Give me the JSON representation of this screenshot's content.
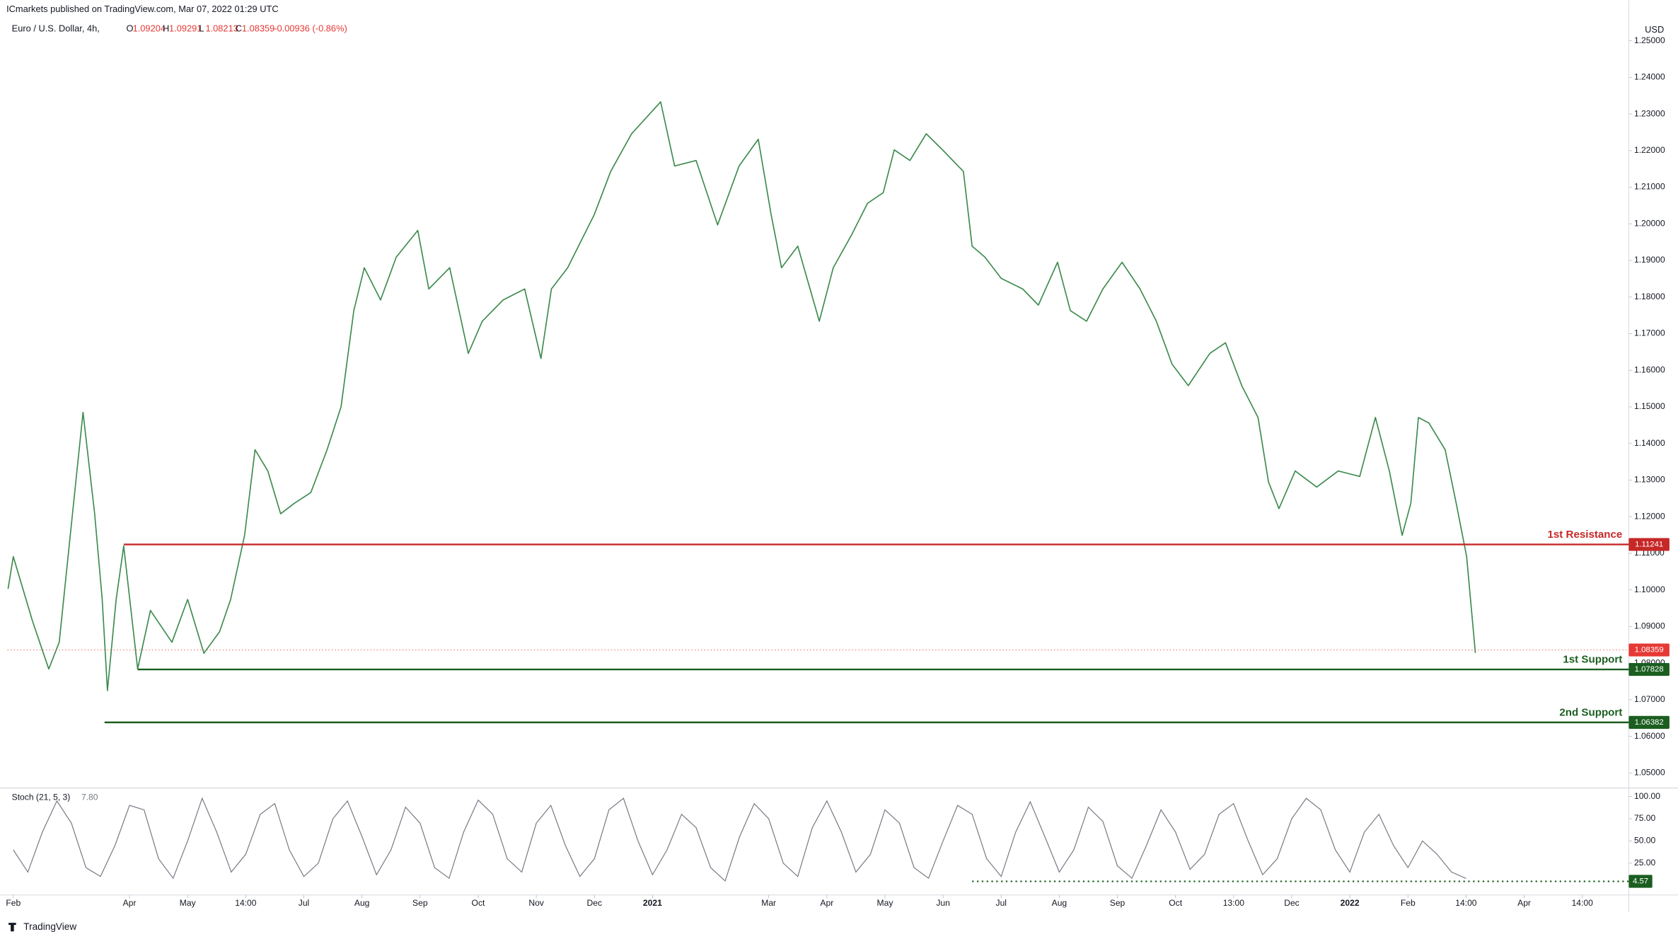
{
  "header": {
    "publisher": "ICmarkets published on TradingView.com, Mar 07, 2022 01:29 UTC",
    "symbol": "Euro / U.S. Dollar, 4h,",
    "ohlc": [
      {
        "key": "O",
        "value": "1.09204"
      },
      {
        "key": "H",
        "value": "1.09291"
      },
      {
        "key": "L",
        "value": "1.08213"
      },
      {
        "key": "C",
        "value": "1.08359"
      }
    ],
    "change": "-0.00936 (-0.86%)",
    "currency": "USD"
  },
  "footer": {
    "brand": "TradingView"
  },
  "chart_data": [
    {
      "type": "line",
      "xlim": [
        -0.1,
        27.8
      ],
      "ylim": [
        1.0462,
        1.2611
      ],
      "x": [
        -0.09,
        0,
        0.33,
        0.61,
        0.79,
        0.98,
        1.2,
        1.4,
        1.53,
        1.62,
        1.77,
        1.9,
        2.14,
        2.36,
        2.73,
        3,
        3.28,
        3.55,
        3.74,
        3.98,
        4.16,
        4.38,
        4.6,
        4.84,
        5.12,
        5.4,
        5.64,
        5.86,
        6.04,
        6.32,
        6.59,
        6.96,
        7.15,
        7.51,
        7.83,
        8.07,
        8.43,
        8.8,
        9.08,
        9.26,
        9.54,
        10,
        10.28,
        10.64,
        11.14,
        11.38,
        11.75,
        12.12,
        12.49,
        12.82,
        13.04,
        13.22,
        13.5,
        13.87,
        14.11,
        14.42,
        14.7,
        14.97,
        15.16,
        15.43,
        15.71,
        15.99,
        16.35,
        16.5,
        16.72,
        17,
        17.37,
        17.64,
        17.97,
        18.19,
        18.47,
        18.75,
        19.08,
        19.39,
        19.67,
        19.94,
        20.22,
        20.59,
        20.86,
        21.14,
        21.42,
        21.6,
        21.78,
        22.06,
        22.43,
        22.8,
        23.17,
        23.44,
        23.68,
        23.9,
        24.05,
        24.18,
        24.36,
        24.64,
        24.83,
        25.01,
        25.16
      ],
      "series": [
        {
          "color": "#3d8b4f",
          "values": [
            1.1003,
            1.1091,
            1.0915,
            1.0784,
            1.0857,
            1.1149,
            1.1485,
            1.1208,
            1.0974,
            1.0725,
            1.0974,
            1.112,
            1.0784,
            1.0944,
            1.0857,
            1.0974,
            1.0827,
            1.0886,
            1.0974,
            1.1149,
            1.1383,
            1.1325,
            1.1208,
            1.1237,
            1.1266,
            1.1383,
            1.15,
            1.1763,
            1.188,
            1.1792,
            1.1909,
            1.1982,
            1.1822,
            1.188,
            1.1646,
            1.1734,
            1.1792,
            1.1822,
            1.1632,
            1.1822,
            1.188,
            1.2026,
            1.2143,
            1.2246,
            1.2333,
            1.2158,
            1.2173,
            1.1997,
            1.2158,
            1.2231,
            1.2026,
            1.188,
            1.1939,
            1.1734,
            1.188,
            1.1968,
            1.2056,
            1.2085,
            1.2202,
            1.2173,
            1.2246,
            1.2202,
            1.2143,
            1.1939,
            1.1909,
            1.1851,
            1.1822,
            1.1778,
            1.1895,
            1.1763,
            1.1734,
            1.1822,
            1.1895,
            1.1822,
            1.1734,
            1.1617,
            1.1558,
            1.1646,
            1.1675,
            1.1558,
            1.1471,
            1.1295,
            1.1222,
            1.1325,
            1.1281,
            1.1325,
            1.131,
            1.1471,
            1.1325,
            1.1149,
            1.1237,
            1.1471,
            1.1456,
            1.1383,
            1.1237,
            1.1091,
            1.0828
          ]
        }
      ],
      "yticks": [
        {
          "value": 1.05,
          "label": "1.05000"
        },
        {
          "value": 1.06,
          "label": "1.06000"
        },
        {
          "value": 1.07,
          "label": "1.07000"
        },
        {
          "value": 1.08,
          "label": "1.08000"
        },
        {
          "value": 1.09,
          "label": "1.09000"
        },
        {
          "value": 1.1,
          "label": "1.10000"
        },
        {
          "value": 1.11,
          "label": "1.11000"
        },
        {
          "value": 1.12,
          "label": "1.12000"
        },
        {
          "value": 1.13,
          "label": "1.13000"
        },
        {
          "value": 1.14,
          "label": "1.14000"
        },
        {
          "value": 1.15,
          "label": "1.15000"
        },
        {
          "value": 1.16,
          "label": "1.16000"
        },
        {
          "value": 1.17,
          "label": "1.17000"
        },
        {
          "value": 1.18,
          "label": "1.18000"
        },
        {
          "value": 1.19,
          "label": "1.19000"
        },
        {
          "value": 1.2,
          "label": "1.20000"
        },
        {
          "value": 1.21,
          "label": "1.21000"
        },
        {
          "value": 1.22,
          "label": "1.22000"
        },
        {
          "value": 1.23,
          "label": "1.23000"
        },
        {
          "value": 1.24,
          "label": "1.24000"
        },
        {
          "value": 1.25,
          "label": "1.25000"
        }
      ],
      "xticks": [
        {
          "value": 0,
          "label": "Feb"
        },
        {
          "value": 2,
          "label": "Apr"
        },
        {
          "value": 3,
          "label": "May"
        },
        {
          "value": 4,
          "label": "14:00"
        },
        {
          "value": 5,
          "label": "Jul"
        },
        {
          "value": 6,
          "label": "Aug"
        },
        {
          "value": 7,
          "label": "Sep"
        },
        {
          "value": 8,
          "label": "Oct"
        },
        {
          "value": 9,
          "label": "Nov"
        },
        {
          "value": 10,
          "label": "Dec"
        },
        {
          "value": 11,
          "label": "2021"
        },
        {
          "value": 13,
          "label": "Mar"
        },
        {
          "value": 14,
          "label": "Apr"
        },
        {
          "value": 15,
          "label": "May"
        },
        {
          "value": 16,
          "label": "Jun"
        },
        {
          "value": 17,
          "label": "Jul"
        },
        {
          "value": 18,
          "label": "Aug"
        },
        {
          "value": 19,
          "label": "Sep"
        },
        {
          "value": 20,
          "label": "Oct"
        },
        {
          "value": 21,
          "label": "13:00"
        },
        {
          "value": 22,
          "label": "Dec"
        },
        {
          "value": 23,
          "label": "2022"
        },
        {
          "value": 24,
          "label": "Feb"
        },
        {
          "value": 25,
          "label": "14:00"
        },
        {
          "value": 26,
          "label": "Apr"
        },
        {
          "value": 27,
          "label": "14:00"
        }
      ],
      "levels": [
        {
          "name": "1st Resistance",
          "value": 1.11241,
          "x_start": 1.9,
          "color": "#c62828"
        },
        {
          "name": "1st Support",
          "value": 1.07828,
          "x_start": 2.14,
          "color": "#1b5e20"
        },
        {
          "name": "2nd Support",
          "value": 1.06382,
          "x_start": 1.57,
          "color": "#1b5e20"
        }
      ],
      "last_price": {
        "value": 1.08359,
        "color": "#e53935"
      }
    },
    {
      "type": "oscillator",
      "name": "Stoch (21, 5, 3)",
      "value_label": "7.80",
      "color": "#787b86",
      "xlim": [
        -0.1,
        27.8
      ],
      "ylim": [
        -9.6,
        107.2
      ],
      "yticks": [
        {
          "value": 25,
          "label": "25.00"
        },
        {
          "value": 50,
          "label": "50.00"
        },
        {
          "value": 75,
          "label": "75.00"
        },
        {
          "value": 100,
          "label": "100.00"
        }
      ],
      "x": [
        0,
        0.25,
        0.5,
        0.75,
        1,
        1.25,
        1.5,
        1.75,
        2,
        2.25,
        2.5,
        2.75,
        3,
        3.25,
        3.5,
        3.75,
        4,
        4.25,
        4.5,
        4.75,
        5,
        5.25,
        5.5,
        5.75,
        6,
        6.25,
        6.5,
        6.75,
        7,
        7.25,
        7.5,
        7.75,
        8,
        8.25,
        8.5,
        8.75,
        9,
        9.25,
        9.5,
        9.75,
        10,
        10.25,
        10.5,
        10.75,
        11,
        11.25,
        11.5,
        11.75,
        12,
        12.25,
        12.5,
        12.75,
        13,
        13.25,
        13.5,
        13.75,
        14,
        14.25,
        14.5,
        14.75,
        15,
        15.25,
        15.5,
        15.75,
        16,
        16.25,
        16.5,
        16.75,
        17,
        17.25,
        17.5,
        17.75,
        18,
        18.25,
        18.5,
        18.75,
        19,
        19.25,
        19.5,
        19.75,
        20,
        20.25,
        20.5,
        20.75,
        21,
        21.25,
        21.5,
        21.75,
        22,
        22.25,
        22.5,
        22.75,
        23,
        23.25,
        23.5,
        23.75,
        24,
        24.25,
        24.5,
        24.75,
        25
      ],
      "values": [
        40,
        15,
        60,
        95,
        70,
        20,
        10,
        45,
        90,
        85,
        30,
        8,
        50,
        98,
        60,
        15,
        35,
        80,
        92,
        40,
        10,
        25,
        75,
        95,
        55,
        12,
        40,
        88,
        70,
        20,
        8,
        60,
        96,
        80,
        30,
        15,
        70,
        90,
        45,
        10,
        30,
        85,
        98,
        50,
        12,
        40,
        80,
        65,
        20,
        5,
        55,
        92,
        75,
        25,
        10,
        65,
        95,
        60,
        15,
        35,
        85,
        70,
        20,
        8,
        50,
        90,
        80,
        30,
        10,
        60,
        94,
        55,
        15,
        40,
        88,
        72,
        22,
        8,
        45,
        85,
        60,
        18,
        35,
        80,
        92,
        50,
        12,
        30,
        75,
        98,
        85,
        40,
        15,
        60,
        80,
        45,
        20,
        50,
        35,
        15,
        7.8
      ],
      "level": {
        "value": 4.57,
        "x_start": 16.5,
        "color": "#1b5e20"
      }
    }
  ]
}
